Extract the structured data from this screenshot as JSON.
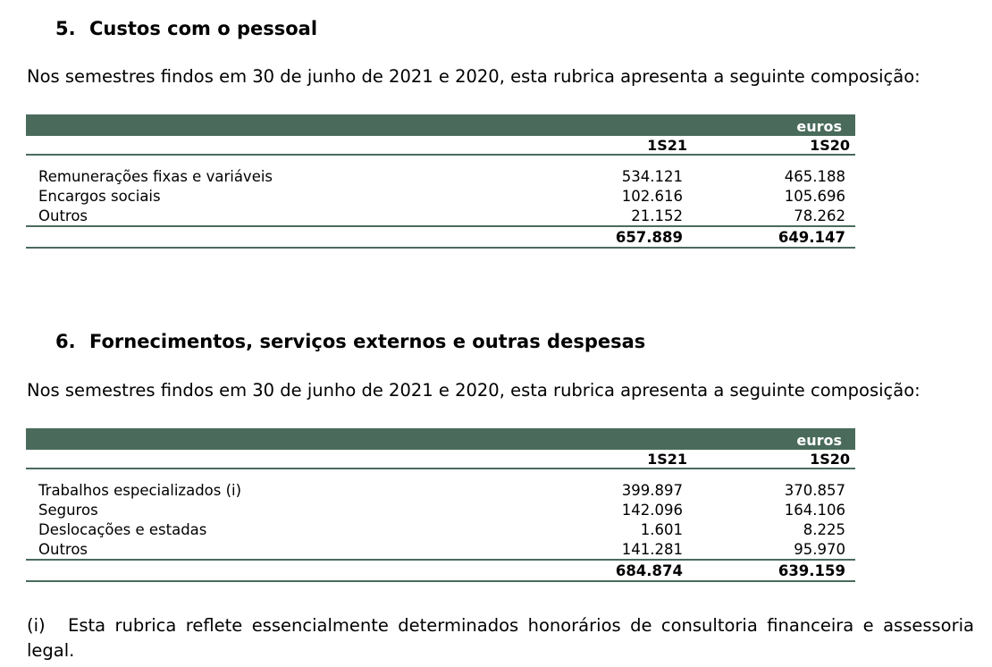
{
  "section5": {
    "number": "5.",
    "title": "Custos com o pessoal",
    "intro": "Nos semestres findos em 30 de junho de 2021 e 2020, esta rubrica apresenta a seguinte composição:",
    "unit": "euros",
    "columns": [
      "1S21",
      "1S20"
    ],
    "rows": [
      {
        "label": "Remunerações fixas e variáveis",
        "v1": "534.121",
        "v2": "465.188"
      },
      {
        "label": "Encargos sociais",
        "v1": "102.616",
        "v2": "105.696"
      },
      {
        "label": "Outros",
        "v1": "21.152",
        "v2": "78.262"
      }
    ],
    "total": {
      "v1": "657.889",
      "v2": "649.147"
    }
  },
  "section6": {
    "number": "6.",
    "title": "Fornecimentos, serviços externos e outras despesas",
    "intro": "Nos semestres findos em 30 de junho de 2021 e 2020, esta rubrica apresenta a seguinte composição:",
    "unit": "euros",
    "columns": [
      "1S21",
      "1S20"
    ],
    "rows": [
      {
        "label": "Trabalhos especializados (i)",
        "v1": "399.897",
        "v2": "370.857"
      },
      {
        "label": "Seguros",
        "v1": "142.096",
        "v2": "164.106"
      },
      {
        "label": "Deslocações e estadas",
        "v1": "1.601",
        "v2": "8.225"
      },
      {
        "label": "Outros",
        "v1": "141.281",
        "v2": "95.970"
      }
    ],
    "total": {
      "v1": "684.874",
      "v2": "639.159"
    }
  },
  "footnote": {
    "mark": "(i)",
    "text": "Esta rubrica reflete essencialmente determinados honorários de consultoria financeira e assessoria legal."
  }
}
